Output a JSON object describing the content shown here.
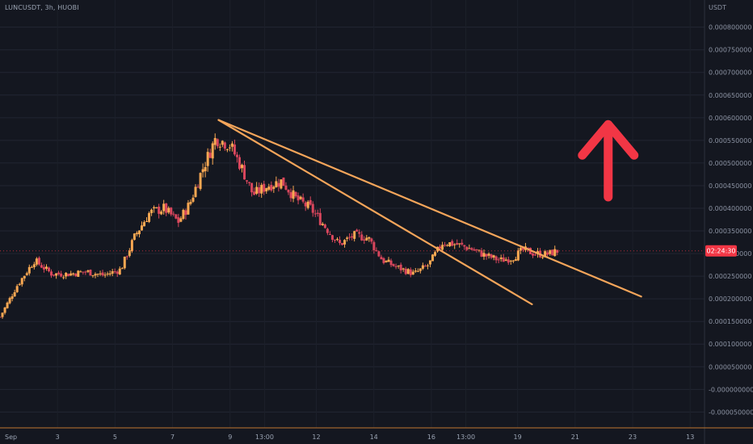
{
  "header": {
    "symbol": "LUNCUSDT, 3h, HUOBI"
  },
  "chart_data": {
    "type": "candlestick",
    "symbol": "LUNCUSDT",
    "interval": "3h",
    "exchange": "HUOBI",
    "currency_label": "USDT",
    "y_ticks": [
      "0.000800000",
      "0.000750000",
      "0.000700000",
      "0.000650000",
      "0.000600000",
      "0.000550000",
      "0.000500000",
      "0.000450000",
      "0.000400000",
      "0.000350000",
      "0.000300000",
      "0.000250000",
      "0.000200000",
      "0.000150000",
      "0.000100000",
      "0.000050000",
      "-0.000000000",
      "-0.000050000"
    ],
    "y_tick_values": [
      0.0008,
      0.00075,
      0.0007,
      0.00065,
      0.0006,
      0.00055,
      0.0005,
      0.00045,
      0.0004,
      0.00035,
      0.0003,
      0.00025,
      0.0002,
      0.00015,
      0.0001,
      5e-05,
      0,
      -5e-05
    ],
    "ylim": [
      -8.5e-05,
      0.00086
    ],
    "x_ticks": [
      "Sep",
      "3",
      "5",
      "7",
      "9",
      "13:00",
      "12",
      "14",
      "16",
      "13:00",
      "19",
      "21",
      "23",
      "13"
    ],
    "x_tick_values": [
      0,
      2,
      4,
      6,
      8,
      9.2,
      11,
      13,
      15,
      16.2,
      18,
      20,
      22,
      24
    ],
    "xlim": [
      0,
      24.5
    ],
    "countdown": "02:24:30",
    "countdown_price": 0.000306,
    "last_price_color": "#f23645",
    "up_color": "#f9a852",
    "down_color": "#d9465d",
    "trendlines": [
      {
        "from": [
          7.6,
          0.000595
        ],
        "to": [
          22.3,
          0.000205
        ],
        "color": "#f5a55a"
      },
      {
        "from": [
          7.6,
          0.000595
        ],
        "to": [
          18.5,
          0.000188
        ],
        "color": "#f5a55a"
      }
    ],
    "annotation": {
      "shape": "up-arrow",
      "color": "#f23645",
      "x": 21.15,
      "y_top": 0.000585,
      "y_bottom": 0.000425
    },
    "anchor_closes": [
      [
        0.0,
        0.00016
      ],
      [
        0.6,
        0.00023
      ],
      [
        1.2,
        0.000285
      ],
      [
        1.8,
        0.000255
      ],
      [
        2.4,
        0.000255
      ],
      [
        3.0,
        0.00026
      ],
      [
        3.6,
        0.000252
      ],
      [
        4.2,
        0.000265
      ],
      [
        4.7,
        0.00034
      ],
      [
        5.2,
        0.00039
      ],
      [
        5.7,
        0.0004
      ],
      [
        6.2,
        0.00037
      ],
      [
        6.6,
        0.00041
      ],
      [
        7.0,
        0.00048
      ],
      [
        7.5,
        0.000555
      ],
      [
        8.0,
        0.00054
      ],
      [
        8.4,
        0.00049
      ],
      [
        8.8,
        0.00043
      ],
      [
        9.3,
        0.00045
      ],
      [
        9.8,
        0.00046
      ],
      [
        10.3,
        0.00042
      ],
      [
        10.8,
        0.0004
      ],
      [
        11.3,
        0.00036
      ],
      [
        11.8,
        0.00032
      ],
      [
        12.3,
        0.00034
      ],
      [
        12.8,
        0.000335
      ],
      [
        13.3,
        0.000285
      ],
      [
        13.8,
        0.00027
      ],
      [
        14.4,
        0.000255
      ],
      [
        14.9,
        0.000275
      ],
      [
        15.4,
        0.000325
      ],
      [
        15.9,
        0.00032
      ],
      [
        16.4,
        0.00031
      ],
      [
        16.9,
        0.000295
      ],
      [
        17.4,
        0.000285
      ],
      [
        17.8,
        0.00029
      ],
      [
        18.2,
        0.000308
      ],
      [
        18.6,
        0.0003
      ],
      [
        19.0,
        0.000298
      ],
      [
        19.4,
        0.000306
      ]
    ]
  }
}
